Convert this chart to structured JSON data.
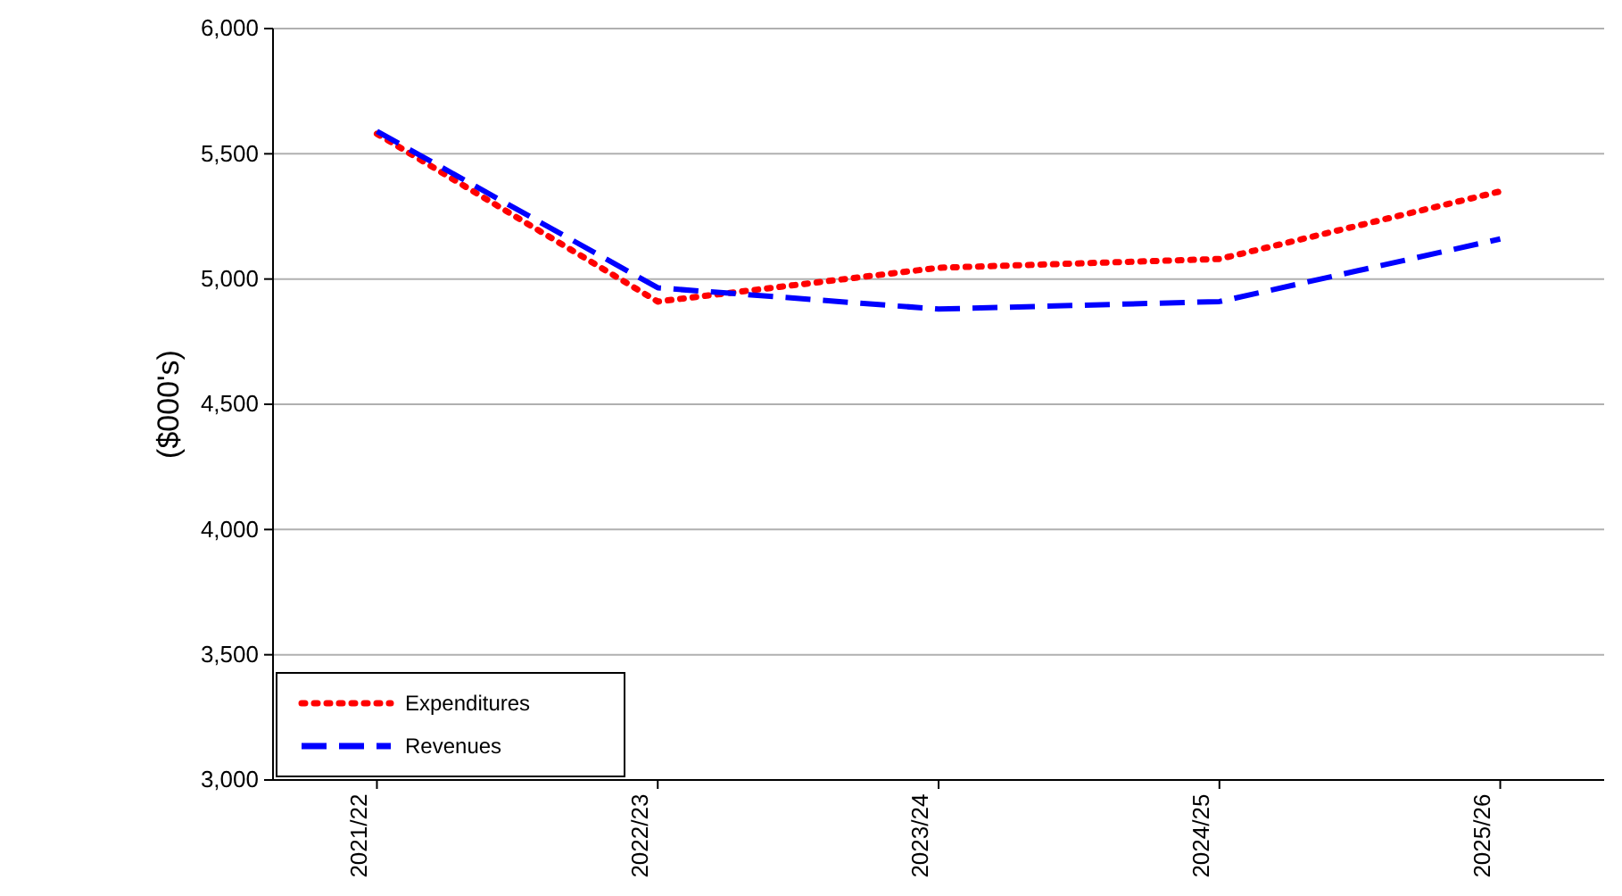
{
  "chart_data": {
    "type": "line",
    "ylabel": "($000's)",
    "categories": [
      "2021/22",
      "2022/23",
      "2023/24",
      "2024/25",
      "2025/26"
    ],
    "series": [
      {
        "name": "Expenditures",
        "color": "#ff0000",
        "line_style": "dotted",
        "values": [
          5580,
          4910,
          5045,
          5080,
          5350
        ]
      },
      {
        "name": "Revenues",
        "color": "#0000ff",
        "line_style": "dashed",
        "values": [
          5590,
          4965,
          4880,
          4910,
          5160
        ]
      }
    ],
    "ylim": [
      3000,
      6000
    ],
    "yticks": [
      {
        "value": 3000,
        "label": "3,000"
      },
      {
        "value": 3500,
        "label": "3,500"
      },
      {
        "value": 4000,
        "label": "4,000"
      },
      {
        "value": 4500,
        "label": "4,500"
      },
      {
        "value": 5000,
        "label": "5,000"
      },
      {
        "value": 5500,
        "label": "5,500"
      },
      {
        "value": 6000,
        "label": "6,000"
      }
    ],
    "grid": "y",
    "legend": "bottom left",
    "marker": "none"
  }
}
